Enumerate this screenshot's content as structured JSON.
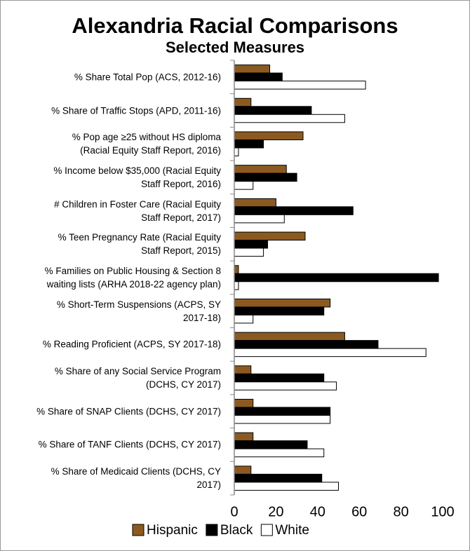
{
  "chart_data": {
    "type": "barh",
    "title": "Alexandria Racial Comparisons",
    "subtitle": "Selected Measures",
    "categories": [
      "% Share Total Pop (ACS, 2012-16)",
      "% Share of Traffic Stops (APD, 2011-16)",
      "% Pop age ≥25 without HS diploma\n(Racial Equity Staff Report, 2016)",
      "% Income below $35,000 (Racial Equity\nStaff Report, 2016)",
      "# Children in Foster Care (Racial Equity\nStaff Report, 2017)",
      "% Teen Pregnancy Rate (Racial Equity\nStaff Report, 2015)",
      "% Families on Public Housing & Section 8\nwaiting lists (ARHA 2018-22 agency plan)",
      "% Short-Term Suspensions (ACPS, SY\n2017-18)",
      "% Reading Proficient (ACPS, SY 2017-18)",
      "% Share of any Social Service Program\n(DCHS, CY 2017)",
      "% Share of SNAP Clients (DCHS, CY 2017)",
      "% Share of TANF Clients (DCHS, CY 2017)",
      "% Share of Medicaid Clients (DCHS, CY\n2017)"
    ],
    "series": [
      {
        "name": "Hispanic",
        "color": "#8c5a20",
        "values": [
          17,
          8,
          33,
          25,
          20,
          34,
          2,
          46,
          53,
          8,
          9,
          9,
          8
        ]
      },
      {
        "name": "Black",
        "color": "#000000",
        "values": [
          23,
          37,
          14,
          30,
          57,
          16,
          98,
          43,
          69,
          43,
          46,
          35,
          42
        ]
      },
      {
        "name": "White",
        "color": "#ffffff",
        "values": [
          63,
          53,
          2,
          9,
          24,
          14,
          2,
          9,
          92,
          49,
          46,
          43,
          50
        ]
      }
    ],
    "xlim": [
      0,
      100
    ],
    "xticks": [
      0,
      20,
      40,
      60,
      80,
      100
    ],
    "legend": "bottom"
  }
}
